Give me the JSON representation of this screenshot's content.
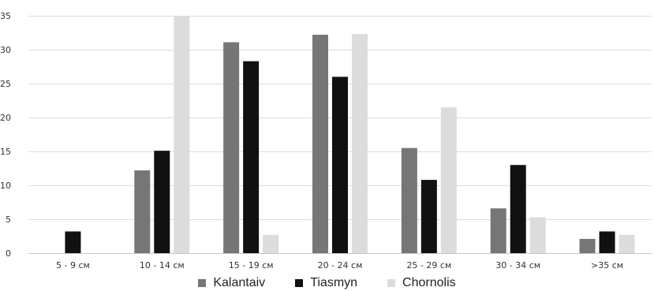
{
  "chart_data": {
    "type": "bar",
    "categories": [
      "5 - 9 см",
      "10 - 14 см",
      "15 - 19 см",
      "20 - 24 см",
      "25 - 29 см",
      "30 - 34 см",
      ">35 см"
    ],
    "series": [
      {
        "name": "Kalantaiv",
        "color": "#767676",
        "values": [
          0,
          12.2,
          31.1,
          32.2,
          15.5,
          6.6,
          2.1
        ]
      },
      {
        "name": "Tiasmyn",
        "color": "#111111",
        "values": [
          3.2,
          15.1,
          28.3,
          26.0,
          10.8,
          13.0,
          3.2
        ]
      },
      {
        "name": "Chornolis",
        "color": "#dcdcdc",
        "values": [
          0,
          35.0,
          2.7,
          32.3,
          21.5,
          5.3,
          2.7
        ]
      }
    ],
    "ylim": [
      0,
      35
    ],
    "yticks": [
      0,
      5,
      10,
      15,
      20,
      25,
      30,
      35
    ],
    "grid": true,
    "legend_position": "bottom"
  }
}
